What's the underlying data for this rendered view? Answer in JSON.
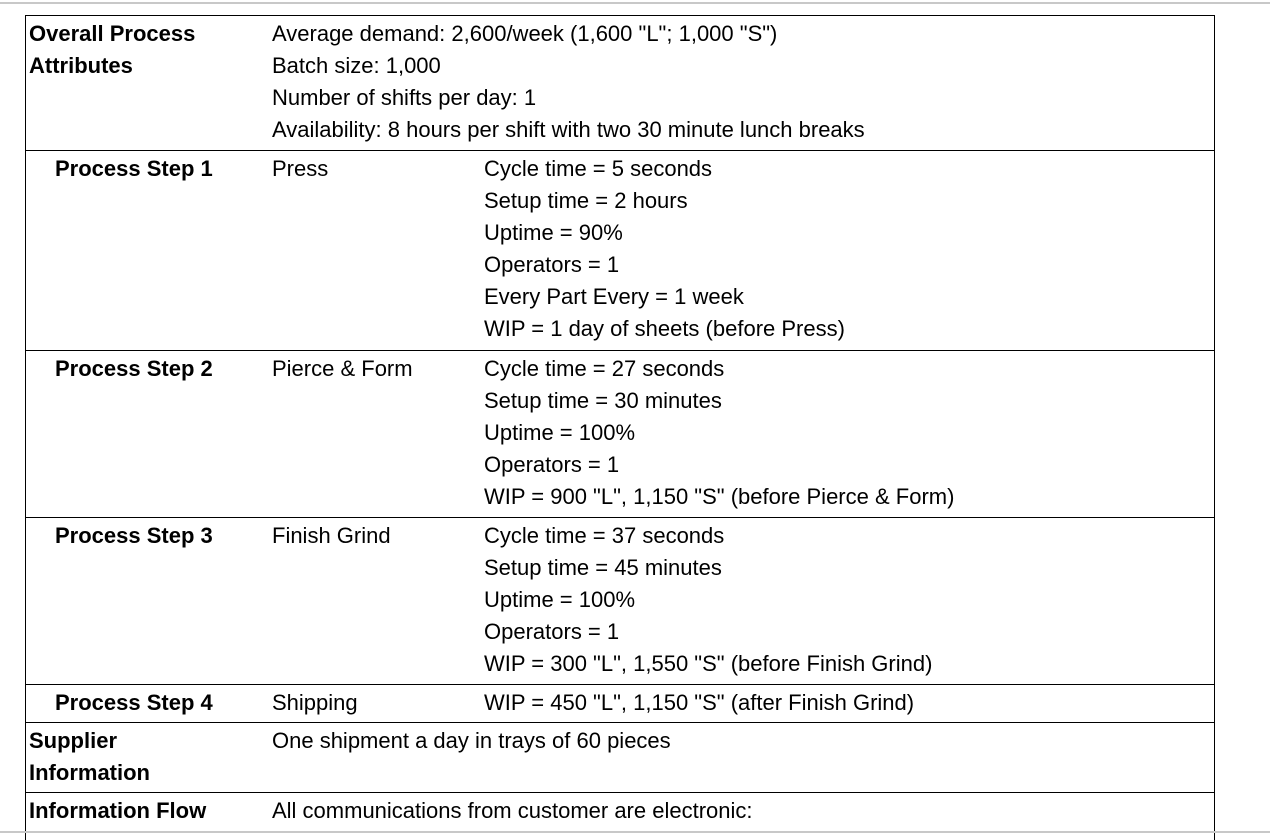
{
  "rows": [
    {
      "label": [
        "Overall Process",
        "Attributes"
      ],
      "content": [
        "Average demand: 2,600/week (1,600 \"L\"; 1,000 \"S\")",
        "Batch size: 1,000",
        "Number of shifts per day: 1",
        "Availability: 8 hours per shift with two 30 minute lunch breaks"
      ]
    },
    {
      "label": [
        "Process Step 1"
      ],
      "step": "Press",
      "details": [
        "Cycle time = 5 seconds",
        "Setup time = 2 hours",
        "Uptime = 90%",
        "Operators = 1",
        "Every Part Every = 1 week",
        "WIP = 1 day of sheets (before Press)"
      ]
    },
    {
      "label": [
        "Process Step 2"
      ],
      "step": "Pierce & Form",
      "details": [
        "Cycle time = 27 seconds",
        "Setup time = 30 minutes",
        "Uptime = 100%",
        "Operators = 1",
        "WIP = 900 \"L\", 1,150 \"S\" (before Pierce & Form)"
      ]
    },
    {
      "label": [
        "Process Step 3"
      ],
      "step": "Finish Grind",
      "details": [
        "Cycle time = 37 seconds",
        "Setup time = 45 minutes",
        "Uptime = 100%",
        "Operators = 1",
        "WIP = 300 \"L\", 1,550 \"S\" (before Finish Grind)"
      ]
    },
    {
      "label": [
        "Process Step 4"
      ],
      "step": "Shipping",
      "details": [
        "WIP = 450 \"L\", 1,150 \"S\" (after Finish Grind)"
      ]
    },
    {
      "label": [
        "Supplier",
        "Information"
      ],
      "content": [
        "One shipment a day in trays of 60 pieces"
      ]
    },
    {
      "label": [
        "Information Flow"
      ],
      "content": [
        "All communications from customer are electronic:"
      ]
    }
  ]
}
